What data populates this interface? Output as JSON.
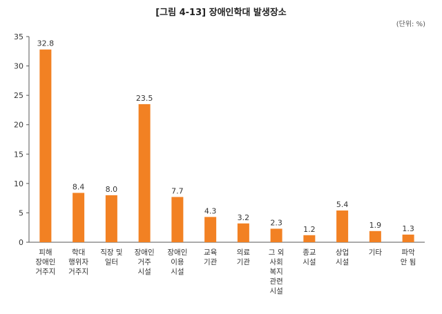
{
  "chart_data": {
    "type": "bar",
    "title": "[그림 4-13] 장애인학대 발생장소",
    "unit_label": "(단위: %)",
    "xlabel": "",
    "ylabel": "",
    "ylim": [
      0,
      35
    ],
    "yticks": [
      "0",
      "5",
      "10",
      "15",
      "20",
      "25",
      "30",
      "35"
    ],
    "grid": false,
    "legend": "none",
    "bar_color": "#F28123",
    "categories": [
      "피해\n장애인\n거주지",
      "학대\n행위자\n거주지",
      "직장 및\n일터",
      "장애인\n거주\n시설",
      "장애인\n이용\n시설",
      "교육\n기관",
      "의료\n기관",
      "그 외\n사회\n복지\n관련\n시설",
      "종교\n시설",
      "상업\n시설",
      "기타",
      "파악\n안 됨"
    ],
    "values": [
      32.8,
      8.4,
      8.0,
      23.5,
      7.7,
      4.3,
      3.2,
      2.3,
      1.2,
      5.4,
      1.9,
      1.3
    ],
    "value_labels": [
      "32.8",
      "8.4",
      "8.0",
      "23.5",
      "7.7",
      "4.3",
      "3.2",
      "2.3",
      "1.2",
      "5.4",
      "1.9",
      "1.3"
    ]
  }
}
